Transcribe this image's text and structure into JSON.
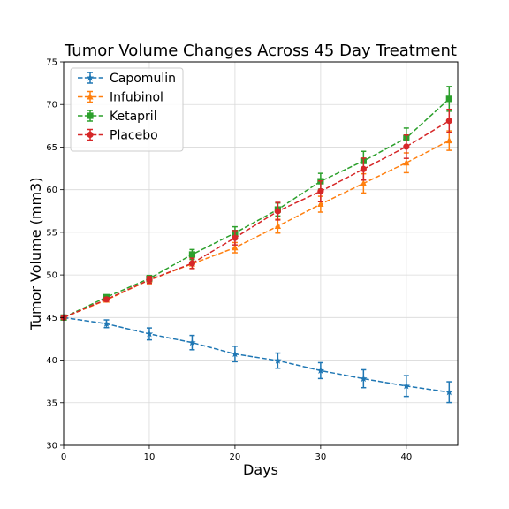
{
  "chart_data": {
    "type": "line",
    "title": "Tumor Volume Changes Across 45 Day Treatment",
    "xlabel": "Days",
    "ylabel": "Tumor Volume (mm3)",
    "xlim": [
      0,
      46
    ],
    "ylim": [
      30,
      75
    ],
    "xticks": [
      0,
      10,
      20,
      30,
      40
    ],
    "yticks": [
      30,
      35,
      40,
      45,
      50,
      55,
      60,
      65,
      70,
      75
    ],
    "grid": true,
    "legend_position": "upper-left",
    "x": [
      0,
      5,
      10,
      15,
      20,
      25,
      30,
      35,
      40,
      45
    ],
    "series": [
      {
        "name": "Capomulin",
        "color": "#1f77b4",
        "marker": "star",
        "values": [
          45.0,
          44.27,
          43.08,
          42.06,
          40.72,
          39.94,
          38.77,
          37.82,
          36.96,
          36.24
        ],
        "errors": [
          0.0,
          0.45,
          0.7,
          0.84,
          0.91,
          0.89,
          0.93,
          1.05,
          1.22,
          1.22
        ]
      },
      {
        "name": "Infubinol",
        "color": "#ff7f0e",
        "marker": "triangle",
        "values": [
          45.0,
          47.06,
          49.4,
          51.3,
          53.2,
          55.72,
          58.3,
          60.74,
          63.16,
          65.76
        ],
        "errors": [
          0.0,
          0.24,
          0.43,
          0.53,
          0.6,
          0.81,
          0.93,
          1.13,
          1.16,
          1.14
        ]
      },
      {
        "name": "Ketapril",
        "color": "#2ca02c",
        "marker": "square",
        "values": [
          45.0,
          47.39,
          49.58,
          52.4,
          54.92,
          57.68,
          60.99,
          63.37,
          66.07,
          70.66
        ],
        "errors": [
          0.0,
          0.26,
          0.36,
          0.58,
          0.73,
          0.76,
          0.93,
          1.13,
          1.16,
          1.45
        ]
      },
      {
        "name": "Placebo",
        "color": "#d62728",
        "marker": "circle",
        "values": [
          45.0,
          47.13,
          49.42,
          51.36,
          54.36,
          57.48,
          59.81,
          62.42,
          65.05,
          68.08
        ],
        "errors": [
          0.0,
          0.22,
          0.4,
          0.61,
          0.84,
          1.03,
          1.22,
          1.29,
          1.37,
          1.35
        ]
      }
    ]
  }
}
